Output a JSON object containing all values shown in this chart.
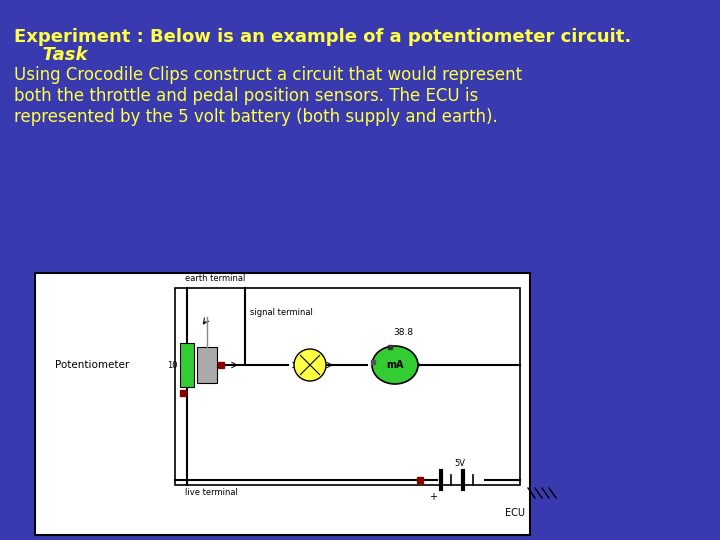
{
  "bg_color": "#3A3AB0",
  "title_text": "Experiment : Below is an example of a potentiometer circuit.",
  "title_color": "#FFFF44",
  "title_fontsize": 13,
  "task_text": "  Task",
  "task_color": "#FFFF44",
  "task_fontsize": 13,
  "body_text": "Using Crocodile Clips construct a circuit that would represent\nboth the throttle and pedal position sensors. The ECU is\nrepresented by the 5 volt battery (both supply and earth).",
  "body_color": "#FFFF44",
  "body_fontsize": 12,
  "diagram_bg": "#FFFFFF",
  "wire_color": "#000000",
  "green_color": "#33CC33",
  "gray_color": "#AAAAAA",
  "yellow_color": "#FFFF44",
  "red_color": "#990000",
  "dark_red": "#880000"
}
